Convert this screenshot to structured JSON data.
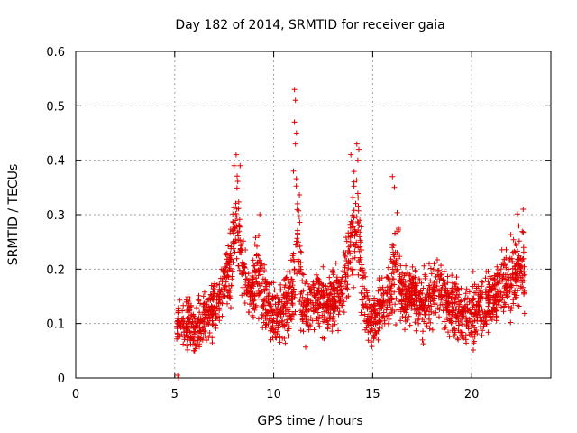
{
  "chart_data": {
    "type": "scatter",
    "title": "Day 182 of 2014, SRMTID for receiver gaia",
    "xlabel": "GPS time / hours",
    "ylabel": "SRMTID / TECUs",
    "xlim": [
      0,
      24
    ],
    "ylim": [
      0,
      0.6
    ],
    "xticks": [
      "0",
      "5",
      "10",
      "15",
      "20"
    ],
    "xtick_values": [
      0,
      5,
      10,
      15,
      20
    ],
    "yticks": [
      "0",
      "0.1",
      "0.2",
      "0.3",
      "0.4",
      "0.5",
      "0.6"
    ],
    "ytick_values": [
      0,
      0.1,
      0.2,
      0.3,
      0.4,
      0.5,
      0.6
    ],
    "grid": true,
    "marker_color": "#e00000",
    "series": [
      {
        "name": "SRMTID",
        "profile_hours": [
          5.2,
          5.5,
          6.0,
          6.5,
          7.0,
          7.5,
          7.9,
          8.1,
          8.4,
          8.8,
          9.2,
          9.5,
          10.0,
          10.5,
          11.0,
          11.15,
          11.5,
          12.0,
          12.5,
          13.0,
          13.5,
          13.8,
          14.1,
          14.3,
          14.5,
          15.0,
          15.5,
          15.8,
          16.2,
          16.5,
          17.0,
          17.5,
          18.0,
          18.5,
          19.0,
          19.5,
          20.0,
          20.5,
          21.0,
          21.5,
          22.0,
          22.4,
          22.7
        ],
        "profile_center": [
          0.1,
          0.1,
          0.09,
          0.11,
          0.13,
          0.16,
          0.22,
          0.3,
          0.2,
          0.15,
          0.2,
          0.14,
          0.12,
          0.12,
          0.15,
          0.24,
          0.13,
          0.14,
          0.13,
          0.14,
          0.17,
          0.22,
          0.28,
          0.27,
          0.14,
          0.1,
          0.14,
          0.15,
          0.22,
          0.15,
          0.16,
          0.13,
          0.15,
          0.16,
          0.13,
          0.12,
          0.11,
          0.13,
          0.15,
          0.17,
          0.19,
          0.2,
          0.18
        ],
        "profile_spread": [
          0.03,
          0.04,
          0.04,
          0.04,
          0.04,
          0.05,
          0.07,
          0.08,
          0.05,
          0.04,
          0.06,
          0.05,
          0.05,
          0.05,
          0.06,
          0.15,
          0.05,
          0.05,
          0.05,
          0.05,
          0.05,
          0.07,
          0.11,
          0.1,
          0.05,
          0.04,
          0.05,
          0.05,
          0.09,
          0.05,
          0.05,
          0.05,
          0.05,
          0.05,
          0.05,
          0.05,
          0.05,
          0.05,
          0.05,
          0.05,
          0.06,
          0.07,
          0.06
        ],
        "extreme_points": [
          [
            11.05,
            0.53
          ],
          [
            11.1,
            0.51
          ],
          [
            11.05,
            0.47
          ],
          [
            11.15,
            0.45
          ],
          [
            11.1,
            0.43
          ],
          [
            11.0,
            0.38
          ],
          [
            11.2,
            0.32
          ],
          [
            14.2,
            0.43
          ],
          [
            14.3,
            0.42
          ],
          [
            14.25,
            0.4
          ],
          [
            13.9,
            0.41
          ],
          [
            8.1,
            0.41
          ],
          [
            8.0,
            0.39
          ],
          [
            8.3,
            0.39
          ],
          [
            16.0,
            0.37
          ],
          [
            16.1,
            0.35
          ],
          [
            9.3,
            0.3
          ],
          [
            22.6,
            0.31
          ],
          [
            5.2,
            0.0
          ],
          [
            5.15,
            0.005
          ]
        ],
        "n_points": 2200,
        "x_range": [
          5.1,
          22.7
        ]
      }
    ]
  }
}
